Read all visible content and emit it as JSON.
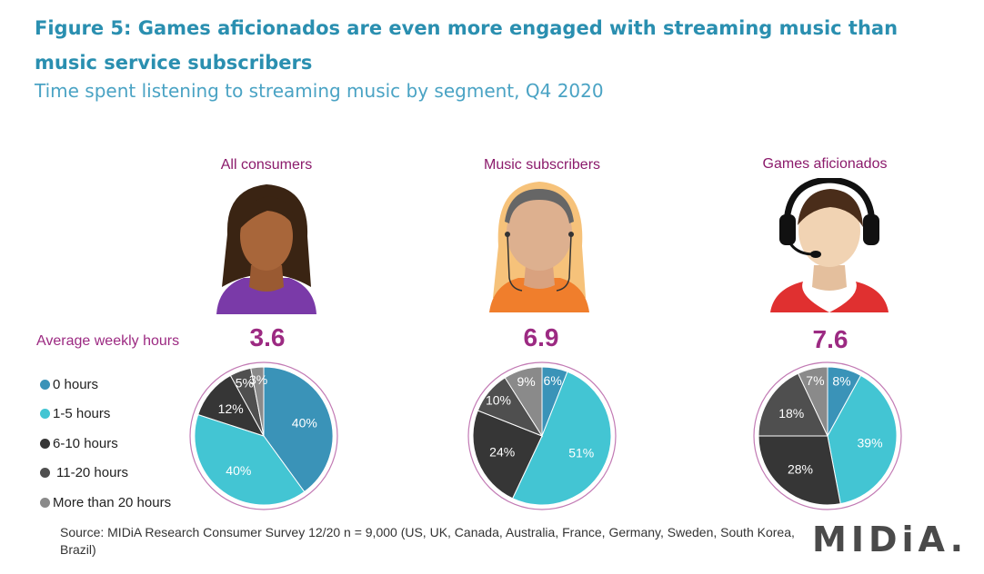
{
  "title": "Figure 5: Games aficionados are even more engaged with streaming music than music service subscribers",
  "subtitle": "Time spent listening to streaming music by segment, Q4 2020",
  "avg_label": "Average weekly hours",
  "source": "Source: MIDiA Research Consumer Survey 12/20 n = 9,000 (US, UK, Canada, Australia, France, Germany, Sweden, South Korea, Brazil)",
  "logo": "MIDiA.",
  "colors": {
    "0 hours": "#3a93b8",
    "1-5 hours": "#43c5d3",
    "6-10 hours": "#363636",
    "11-20 hours": "#4f4f4f",
    "More than 20 hours": "#8a8a8a"
  },
  "chart_data": {
    "type": "pie",
    "categories": [
      "0 hours",
      "1-5 hours",
      "6-10 hours",
      "11-20 hours",
      "More than 20 hours"
    ],
    "series": [
      {
        "name": "All consumers",
        "average_weekly_hours": "3.6",
        "values": [
          40,
          40,
          12,
          5,
          3
        ]
      },
      {
        "name": "Music subscribers",
        "average_weekly_hours": "6.9",
        "values": [
          6,
          51,
          24,
          10,
          9
        ]
      },
      {
        "name": "Games aficionados",
        "average_weekly_hours": "7.6",
        "values": [
          8,
          39,
          28,
          18,
          7
        ]
      }
    ],
    "legend_position": "left"
  }
}
